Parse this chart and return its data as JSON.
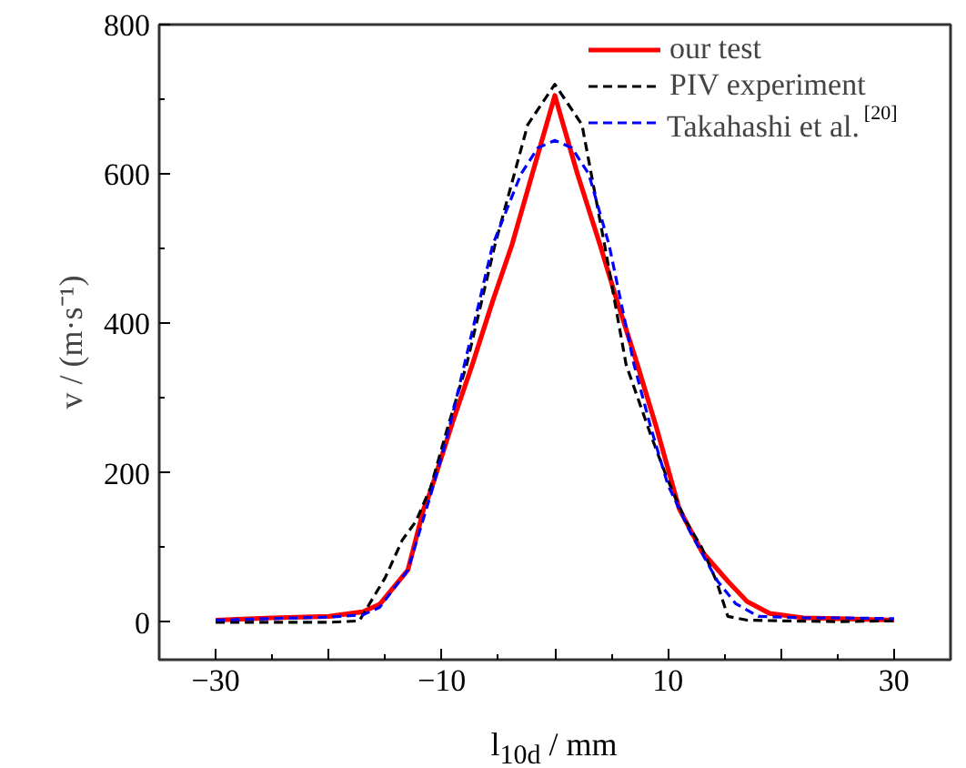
{
  "chart_data": {
    "type": "line",
    "xlabel": "l$_{10d}$ / mm",
    "ylabel": "v / (m·s⁻¹)",
    "xlim": [
      -35,
      35
    ],
    "ylim": [
      -50,
      800
    ],
    "xticks": [
      -30,
      {
        "value": -20,
        "label": null
      },
      -10,
      {
        "value": 0,
        "label": null
      },
      10,
      {
        "value": 20,
        "label": null
      },
      30
    ],
    "yticks": [
      0,
      200,
      400,
      600,
      800
    ],
    "grid": false,
    "legend": "top right",
    "series": [
      {
        "name": "our test",
        "color": "#ff0000",
        "line_style": "solid",
        "x": [
          -30,
          -25,
          -20,
          -17,
          -15.5,
          -13,
          -11.6,
          -11,
          -9,
          -7.3,
          -5.5,
          -3.8,
          -2,
          0,
          2,
          4,
          5.5,
          7.3,
          9,
          11,
          13,
          15.3,
          17,
          19,
          22,
          25,
          30
        ],
        "values": [
          3,
          6,
          8,
          14,
          24,
          70,
          152,
          175,
          270,
          345,
          430,
          505,
          600,
          705,
          600,
          505,
          430,
          345,
          260,
          152,
          95,
          55,
          28,
          12,
          6,
          5,
          3
        ]
      },
      {
        "name": "PIV experiment",
        "color": "#000000",
        "line_style": "dashed",
        "x": [
          -30,
          -25,
          -20,
          -17.3,
          -15,
          -13.5,
          -12.3,
          -11,
          -9.5,
          -7.8,
          -5.3,
          -2.4,
          0,
          2.4,
          4.4,
          6.3,
          8.5,
          10,
          11.6,
          13,
          14.3,
          15.3,
          17,
          20,
          25,
          30
        ],
        "values": [
          0,
          0,
          0,
          2,
          60,
          110,
          135,
          180,
          260,
          345,
          505,
          666,
          720,
          666,
          505,
          345,
          250,
          190,
          135,
          100,
          55,
          8,
          3,
          2,
          1,
          2
        ]
      },
      {
        "name": "Takahashi et al.$^{[20]}$",
        "color": "#0000ff",
        "line_style": "dashed",
        "x": [
          -30,
          -25,
          -20,
          -17,
          -15.5,
          -13,
          -11,
          -9.5,
          -8,
          -5.5,
          -3,
          -1.5,
          0,
          1.5,
          3,
          4.8,
          7,
          8.5,
          10,
          12,
          14.4,
          16,
          18,
          22,
          25,
          30
        ],
        "values": [
          3,
          5,
          7,
          10,
          20,
          70,
          170,
          250,
          345,
          505,
          600,
          635,
          645,
          635,
          600,
          505,
          345,
          260,
          184,
          120,
          55,
          25,
          8,
          6,
          6,
          5
        ]
      }
    ]
  }
}
